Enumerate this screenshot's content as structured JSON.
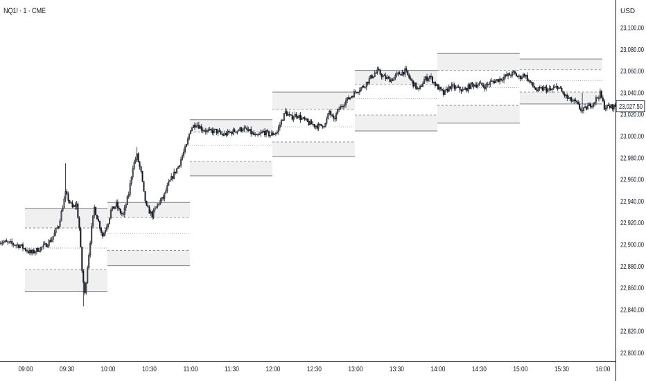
{
  "header": {
    "symbol_title": "NQ1! · 1 · CME",
    "currency": "USD"
  },
  "colors": {
    "candle": "#131722",
    "box_fill": "#f0f0f1",
    "line": "#787b86",
    "axis": "#131722"
  },
  "chart_data": {
    "type": "candlestick",
    "title": "NQ1! · 1 · CME",
    "ylim": [
      22800,
      23100
    ],
    "yticks": [
      23100,
      23080,
      23060,
      23040,
      23020,
      23000,
      22980,
      22960,
      22940,
      22920,
      22900,
      22880,
      22860,
      22840,
      22820,
      22800
    ],
    "ytick_labels": [
      "23,100.00",
      "23,080.00",
      "23,060.00",
      "23,040.00",
      "23,020.00",
      "23,000.00",
      "22,980.00",
      "22,960.00",
      "22,940.00",
      "22,920.00",
      "22,900.00",
      "22,880.00",
      "22,860.00",
      "22,840.00",
      "22,820.00",
      "22,800.00"
    ],
    "xtick_labels": [
      "09:00",
      "09:30",
      "10:00",
      "10:30",
      "11:00",
      "11:30",
      "12:00",
      "12:30",
      "13:00",
      "13:30",
      "14:00",
      "14:30",
      "15:00",
      "15:30",
      "16:00"
    ],
    "x_unit": "minutes since 09:00",
    "last_price": 23027.5,
    "last_price_label": "23,027.50",
    "price_path": [
      [
        -19,
        22903
      ],
      [
        -4,
        22899
      ],
      [
        4,
        22892
      ],
      [
        14,
        22899
      ],
      [
        19,
        22905
      ],
      [
        24,
        22918
      ],
      [
        29,
        22947
      ],
      [
        34,
        22934
      ],
      [
        37,
        22937
      ],
      [
        39,
        22915
      ],
      [
        41,
        22876
      ],
      [
        43,
        22854
      ],
      [
        45,
        22880
      ],
      [
        48,
        22915
      ],
      [
        50,
        22934
      ],
      [
        53,
        22921
      ],
      [
        56,
        22908
      ],
      [
        60,
        22921
      ],
      [
        62,
        22931
      ],
      [
        66,
        22937
      ],
      [
        68,
        22931
      ],
      [
        71,
        22927
      ],
      [
        75,
        22947
      ],
      [
        78,
        22972
      ],
      [
        81,
        22982
      ],
      [
        84,
        22966
      ],
      [
        86,
        22947
      ],
      [
        88,
        22934
      ],
      [
        92,
        22927
      ],
      [
        96,
        22937
      ],
      [
        100,
        22943
      ],
      [
        104,
        22956
      ],
      [
        107,
        22963
      ],
      [
        111,
        22972
      ],
      [
        114,
        22982
      ],
      [
        117,
        22991
      ],
      [
        120,
        23007
      ],
      [
        124,
        23012
      ],
      [
        128,
        23007
      ],
      [
        133,
        23004
      ],
      [
        138,
        23005
      ],
      [
        143,
        23001
      ],
      [
        148,
        23003
      ],
      [
        153,
        23005
      ],
      [
        158,
        23007
      ],
      [
        163,
        23004
      ],
      [
        168,
        22999
      ],
      [
        173,
        23004
      ],
      [
        178,
        23001
      ],
      [
        183,
        23004
      ],
      [
        186,
        23014
      ],
      [
        189,
        23022
      ],
      [
        193,
        23017
      ],
      [
        197,
        23020
      ],
      [
        201,
        23016
      ],
      [
        206,
        23012
      ],
      [
        213,
        23009
      ],
      [
        218,
        23011
      ],
      [
        221,
        23023
      ],
      [
        224,
        23014
      ],
      [
        227,
        23023
      ],
      [
        231,
        23030
      ],
      [
        236,
        23036
      ],
      [
        241,
        23042
      ],
      [
        246,
        23046
      ],
      [
        251,
        23054
      ],
      [
        256,
        23060
      ],
      [
        261,
        23054
      ],
      [
        266,
        23052
      ],
      [
        271,
        23057
      ],
      [
        276,
        23060
      ],
      [
        281,
        23050
      ],
      [
        286,
        23042
      ],
      [
        290,
        23052
      ],
      [
        294,
        23055
      ],
      [
        299,
        23046
      ],
      [
        304,
        23039
      ],
      [
        309,
        23046
      ],
      [
        314,
        23044
      ],
      [
        319,
        23042
      ],
      [
        324,
        23047
      ],
      [
        329,
        23048
      ],
      [
        334,
        23046
      ],
      [
        339,
        23050
      ],
      [
        344,
        23052
      ],
      [
        349,
        23055
      ],
      [
        355,
        23058
      ],
      [
        359,
        23054
      ],
      [
        363,
        23057
      ],
      [
        367,
        23049
      ],
      [
        372,
        23042
      ],
      [
        377,
        23044
      ],
      [
        382,
        23042
      ],
      [
        387,
        23046
      ],
      [
        391,
        23039
      ],
      [
        395,
        23034
      ],
      [
        400,
        23031
      ],
      [
        405,
        23023
      ],
      [
        409,
        23027
      ],
      [
        413,
        23031
      ],
      [
        418,
        23039
      ],
      [
        421,
        23027
      ],
      [
        425,
        23027
      ],
      [
        429,
        23027.5
      ]
    ],
    "spikes": [
      [
        29,
        22975
      ],
      [
        42,
        22843
      ],
      [
        81,
        22990
      ],
      [
        189,
        23026
      ],
      [
        256,
        23063
      ],
      [
        405,
        23040
      ],
      [
        418,
        23044
      ]
    ],
    "session_levels": [
      {
        "start": 0,
        "end": 59,
        "upper_top": 22933.4,
        "upper_mid": 22915.3,
        "mid": 22896.8,
        "lower_mid": 22877.0,
        "lower_bottom": 22856.8
      },
      {
        "start": 60,
        "end": 119,
        "upper_top": 22938.8,
        "upper_mid": 22925.1,
        "mid": 22910.4,
        "lower_mid": 22894.6,
        "lower_bottom": 22880.4
      },
      {
        "start": 120,
        "end": 179,
        "upper_top": 23015.2,
        "upper_mid": 23003.7,
        "mid": 22991.4,
        "lower_mid": 22976.7,
        "lower_bottom": 22963.3
      },
      {
        "start": 180,
        "end": 239,
        "upper_top": 23040.6,
        "upper_mid": 23024.6,
        "mid": 23008.6,
        "lower_mid": 22994.6,
        "lower_bottom": 22981.2
      },
      {
        "start": 240,
        "end": 299,
        "upper_top": 23060.6,
        "upper_mid": 23047.6,
        "mid": 23034.4,
        "lower_mid": 23019.5,
        "lower_bottom": 23004.8
      },
      {
        "start": 300,
        "end": 359,
        "upper_top": 23076.2,
        "upper_mid": 23060.6,
        "mid": 23044.6,
        "lower_mid": 23028.4,
        "lower_bottom": 23012.0
      },
      {
        "start": 360,
        "end": 419,
        "upper_top": 23071.2,
        "upper_mid": 23061.2,
        "mid": 23051.0,
        "lower_mid": 23040.6,
        "lower_bottom": 23029.7
      }
    ]
  }
}
